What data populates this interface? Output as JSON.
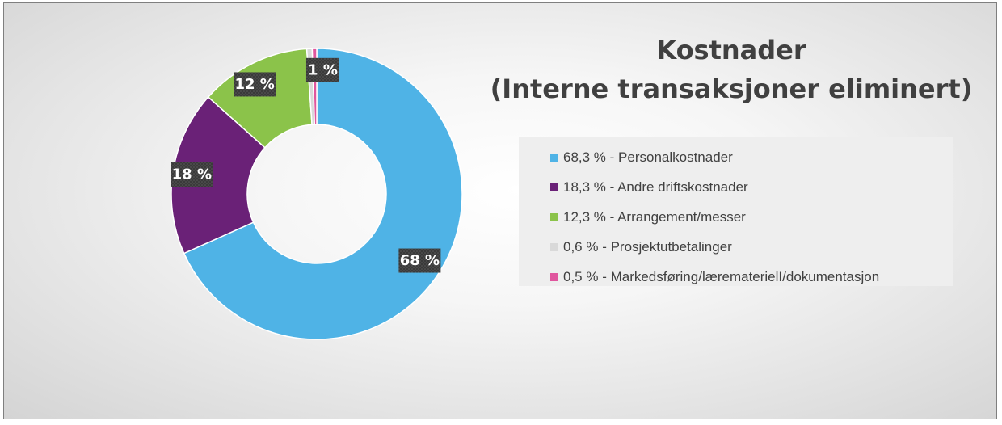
{
  "chart_data": {
    "type": "pie",
    "title": "Kostnader",
    "subtitle": "(Interne transaksjoner eliminert)",
    "legend_position": "right",
    "categories": [
      "Personalkostnader",
      "Andre driftskostnader",
      "Arrangement/messer",
      "Prosjektutbetalinger",
      "Markedsføring/lærematerielI/dokumentasjon"
    ],
    "values": [
      68.3,
      18.3,
      12.3,
      0.6,
      0.5
    ],
    "legend_entries": [
      "68,3 % - Personalkostnader",
      "18,3 % - Andre driftskostnader",
      "12,3 % - Arrangement/messer",
      "0,6 % - Prosjektutbetalinger",
      "0,5 % - Markedsføring/lærematerielI/dokumentasjon"
    ],
    "data_labels": [
      "68 %",
      "18 %",
      "12 %",
      "",
      "1 %"
    ],
    "colors": [
      "#4fb3e6",
      "#6a2177",
      "#8bc34a",
      "#d9d9d9",
      "#e0569e"
    ]
  }
}
